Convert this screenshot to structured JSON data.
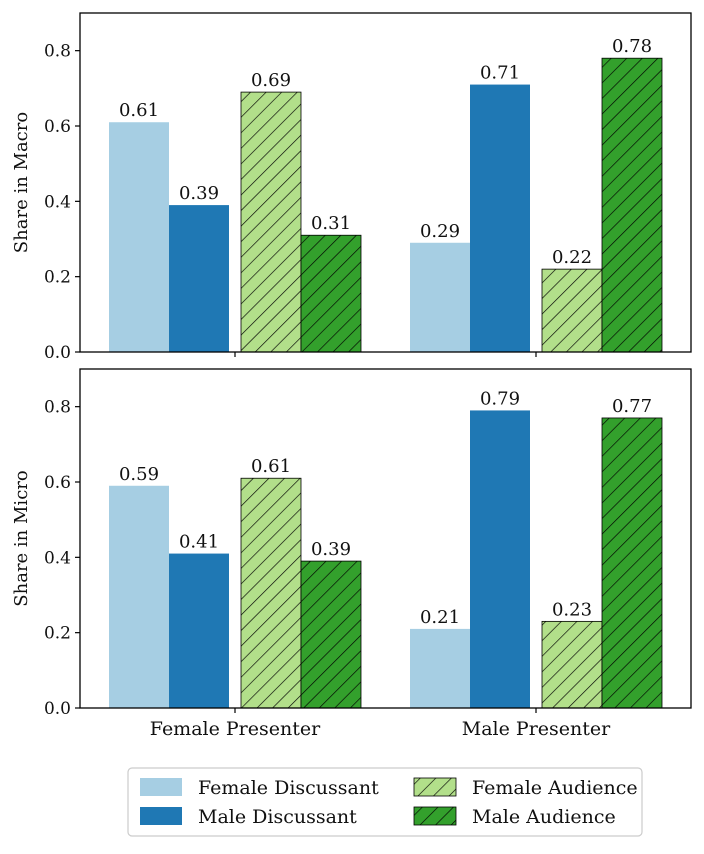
{
  "chart_data": {
    "type": "bar",
    "categories": [
      "Female Presenter",
      "Male Presenter"
    ],
    "series": [
      {
        "name": "Female Discussant",
        "color": "#a6cee3",
        "hatch": false
      },
      {
        "name": "Male Discussant",
        "color": "#1f78b4",
        "hatch": false
      },
      {
        "name": "Female Audience",
        "color": "#b2df8a",
        "hatch": true
      },
      {
        "name": "Male Audience",
        "color": "#33a02c",
        "hatch": true
      }
    ],
    "panels": [
      {
        "ylabel": "Share in Macro",
        "ylim": [
          0,
          0.9
        ],
        "yticks": [
          "0.0",
          "0.2",
          "0.4",
          "0.6",
          "0.8"
        ],
        "values": [
          [
            0.61,
            0.39,
            0.69,
            0.31
          ],
          [
            0.29,
            0.71,
            0.22,
            0.78
          ]
        ],
        "labels": [
          [
            "0.61",
            "0.39",
            "0.69",
            "0.31"
          ],
          [
            "0.29",
            "0.71",
            "0.22",
            "0.78"
          ]
        ]
      },
      {
        "ylabel": "Share in Micro",
        "ylim": [
          0,
          0.9
        ],
        "yticks": [
          "0.0",
          "0.2",
          "0.4",
          "0.6",
          "0.8"
        ],
        "values": [
          [
            0.59,
            0.41,
            0.61,
            0.39
          ],
          [
            0.21,
            0.79,
            0.23,
            0.77
          ]
        ],
        "labels": [
          [
            "0.59",
            "0.41",
            "0.61",
            "0.39"
          ],
          [
            "0.21",
            "0.79",
            "0.23",
            "0.77"
          ]
        ]
      }
    ],
    "legend": {
      "placement": "bottom-center",
      "columns": 2
    },
    "grid": false
  }
}
